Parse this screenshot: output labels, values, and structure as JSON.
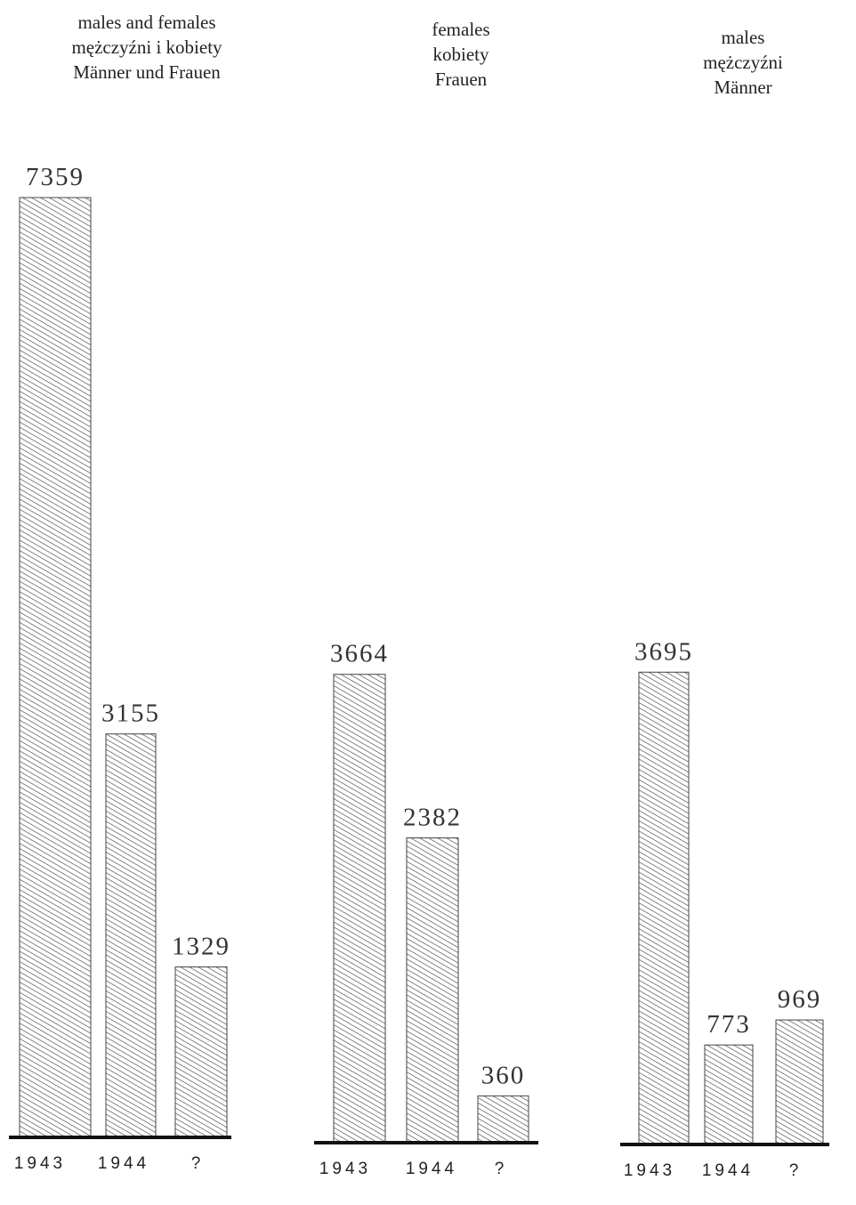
{
  "chart_data": [
    {
      "type": "bar",
      "title": [
        "males and females",
        "mężczyźni i kobiety",
        "Männer und Frauen"
      ],
      "categories": [
        "1943",
        "1944",
        "?"
      ],
      "values": [
        7359,
        3155,
        1329
      ],
      "color": "#444444"
    },
    {
      "type": "bar",
      "title": [
        "females",
        "kobiety",
        "Frauen"
      ],
      "categories": [
        "1943",
        "1944",
        "?"
      ],
      "values": [
        3664,
        2382,
        360
      ],
      "color": "#444444"
    },
    {
      "type": "bar",
      "title": [
        "males",
        "mężczyźni",
        "Männer"
      ],
      "categories": [
        "1943",
        "1944",
        "?"
      ],
      "values": [
        3695,
        773,
        969
      ],
      "color": "#444444"
    }
  ]
}
